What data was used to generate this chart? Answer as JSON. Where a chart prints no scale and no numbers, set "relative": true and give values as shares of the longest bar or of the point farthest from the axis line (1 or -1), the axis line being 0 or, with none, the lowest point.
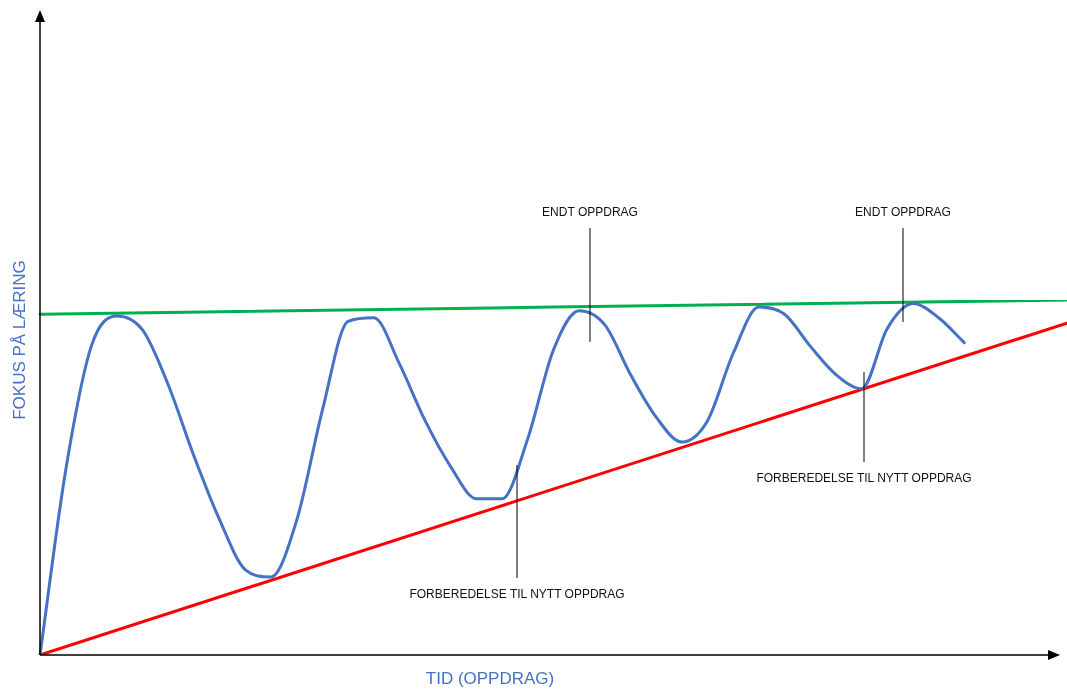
{
  "chart_data": {
    "type": "line",
    "relative": true,
    "legend": false,
    "marker": "none",
    "line_style": "solid",
    "xlabel": "TID (OPPDRAG)",
    "ylabel": "FOKUS PÅ LÆRING",
    "annotations": [
      "ENDT OPPDRAG",
      "ENDT OPPDRAG",
      "FORBEREDELSE TIL NYTT OPPDRAG",
      "FORBEREDELSE TIL NYTT OPPDRAG"
    ],
    "categories": [
      null,
      null,
      null,
      null,
      null,
      null,
      null,
      null,
      null,
      null,
      null,
      null,
      null,
      null,
      null,
      null,
      null,
      null,
      null,
      null,
      null,
      null,
      null,
      null,
      null,
      null,
      null,
      null,
      null,
      null,
      null,
      null,
      null,
      null,
      null,
      null,
      null,
      null,
      null,
      null,
      null
    ],
    "series": [
      {
        "color": "#4472c4",
        "values": [
          0,
          0.52,
          0.87,
          0.955,
          0.915,
          0.76,
          0.56,
          0.38,
          0.24,
          0.22,
          0.38,
          0.69,
          0.94,
          0.95,
          0.82,
          0.66,
          0.53,
          0.44,
          0.44,
          0.61,
          0.86,
          0.97,
          0.93,
          0.79,
          0.67,
          0.6,
          0.66,
          0.85,
          0.98,
          0.96,
          0.87,
          0.79,
          0.75,
          0.92,
          0.99,
          0.95,
          0.88,
          null,
          null,
          null,
          null
        ]
      },
      {
        "color": "#00b050",
        "values": [
          0.96,
          null,
          null,
          null,
          null,
          null,
          null,
          null,
          null,
          null,
          null,
          null,
          null,
          null,
          null,
          null,
          null,
          null,
          null,
          null,
          null,
          null,
          null,
          null,
          null,
          null,
          null,
          null,
          null,
          null,
          null,
          null,
          null,
          null,
          null,
          null,
          null,
          null,
          null,
          null,
          1
        ]
      },
      {
        "color": "#ff0000",
        "values": [
          0,
          null,
          null,
          null,
          null,
          null,
          null,
          null,
          null,
          null,
          null,
          null,
          null,
          null,
          null,
          null,
          null,
          null,
          null,
          null,
          null,
          null,
          null,
          null,
          null,
          null,
          null,
          null,
          null,
          null,
          null,
          null,
          null,
          null,
          null,
          null,
          null,
          null,
          null,
          null,
          0.935
        ]
      }
    ]
  }
}
